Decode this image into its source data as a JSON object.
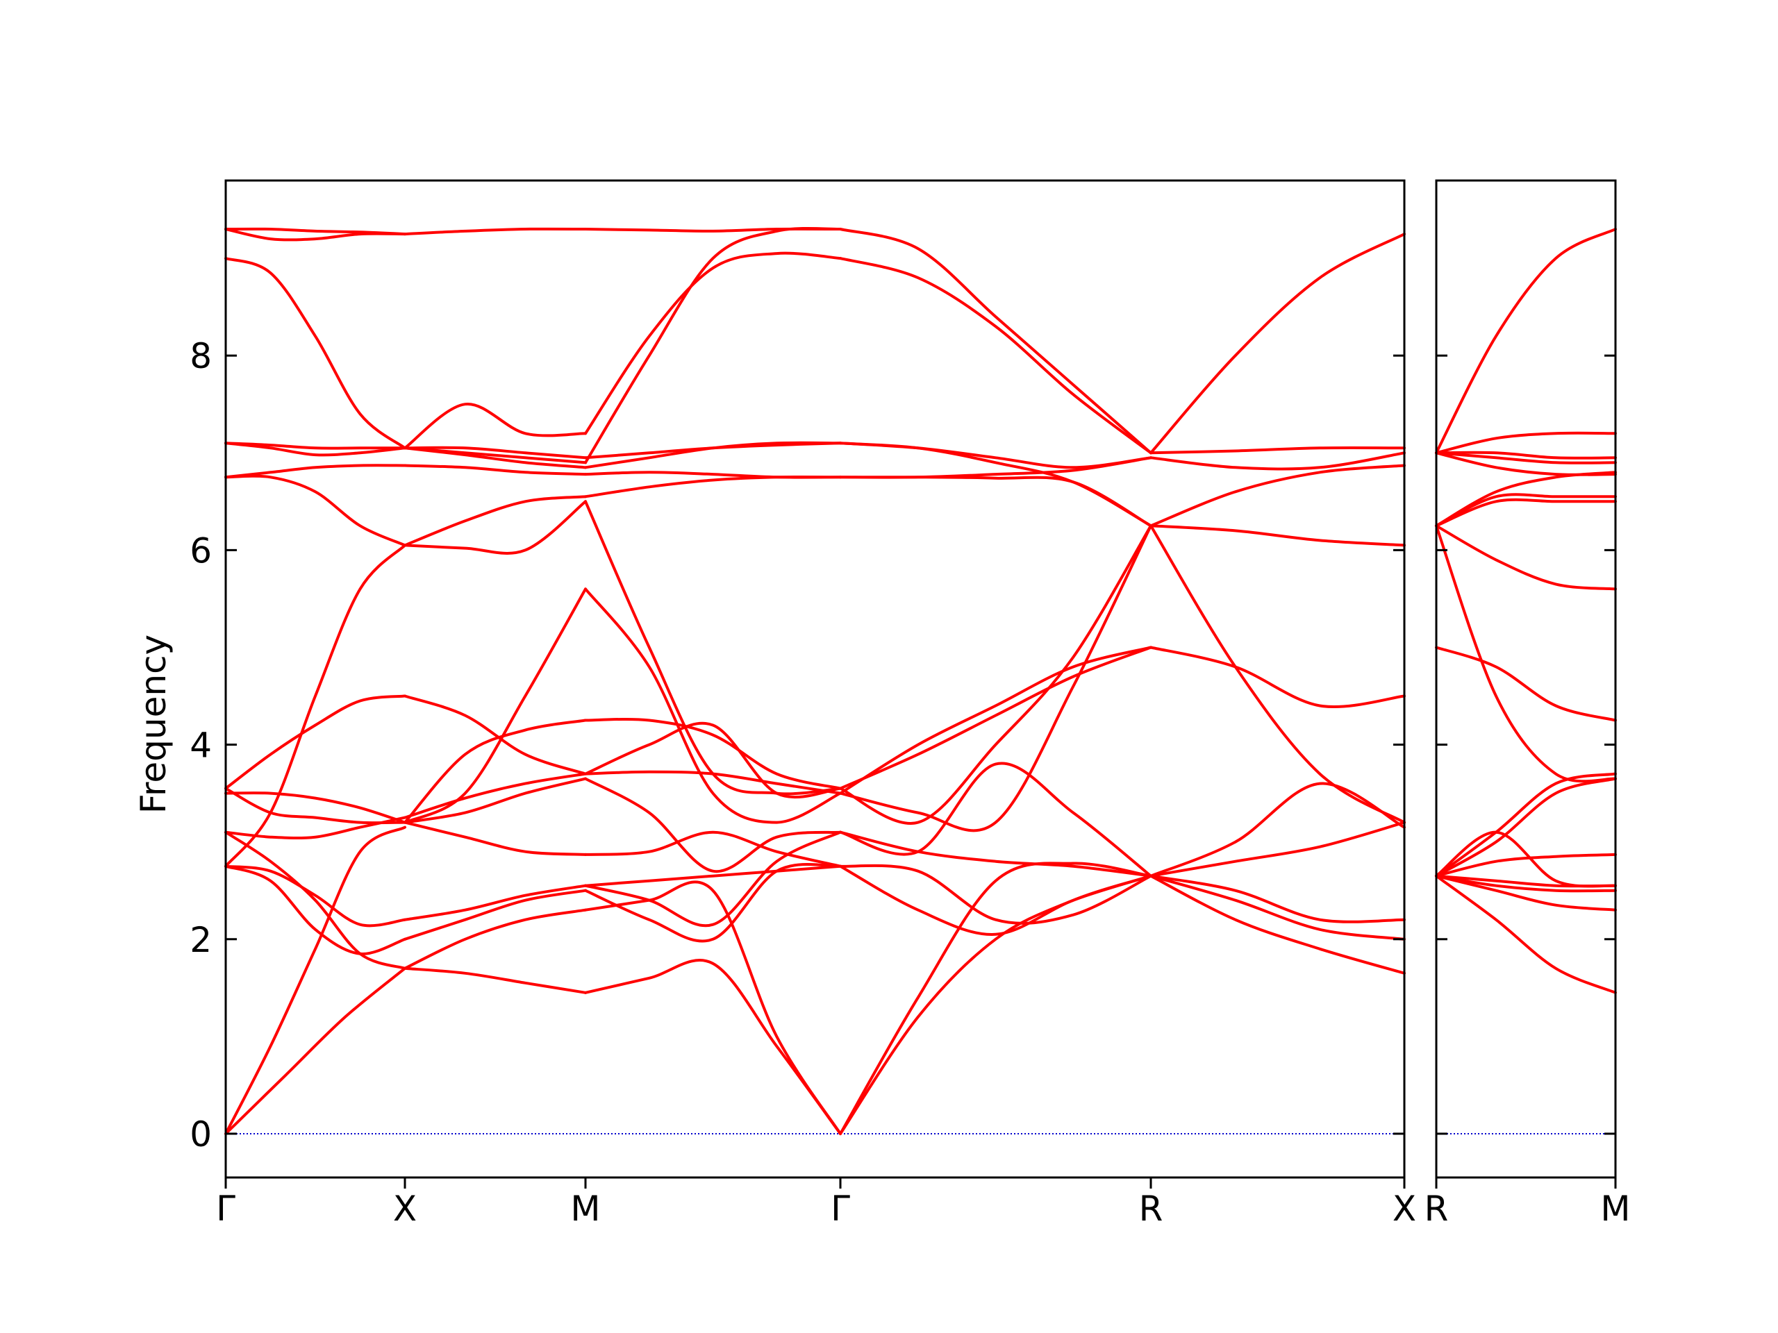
{
  "chart_data": {
    "type": "line",
    "ylabel": "Frequency",
    "ylim": [
      -0.45,
      9.8
    ],
    "yticks": [
      0,
      2,
      4,
      6,
      8
    ],
    "line_color": "#ff0000",
    "zero_line_color": "#0000cc",
    "panels": [
      {
        "xticks": [
          "Γ",
          "X",
          "M",
          "Γ",
          "R",
          "X"
        ],
        "segments": [
          {
            "from": "Γ",
            "to": "X",
            "bands": [
              [
                0,
                0.6,
                1.2,
                1.7
              ],
              [
                0,
                0.9,
                1.9,
                2.9,
                3.15
              ],
              [
                2.75,
                2.6,
                2.1,
                1.85,
                2.0
              ],
              [
                2.75,
                2.7,
                2.45,
                2.15,
                2.2
              ],
              [
                2.75,
                3.3,
                4.5,
                5.6,
                6.05
              ],
              [
                3.1,
                3.05,
                3.05,
                3.15,
                3.25
              ],
              [
                3.1,
                2.8,
                2.4,
                1.85,
                1.7
              ],
              [
                3.55,
                3.3,
                3.25,
                3.2,
                3.2
              ],
              [
                3.5,
                3.5,
                3.45,
                3.35,
                3.2
              ],
              [
                3.55,
                3.9,
                4.2,
                4.45,
                4.5
              ],
              [
                6.75,
                6.75,
                6.6,
                6.25,
                6.05
              ],
              [
                6.75,
                6.8,
                6.85,
                6.87,
                6.87
              ],
              [
                7.1,
                7.08,
                7.05,
                7.05,
                7.05
              ],
              [
                7.1,
                7.05,
                6.98,
                7.0,
                7.05
              ],
              [
                9.0,
                8.85,
                8.2,
                7.4,
                7.05
              ],
              [
                9.3,
                9.2,
                9.2,
                9.25,
                9.25
              ],
              [
                9.3,
                9.3,
                9.28,
                9.27,
                9.25
              ]
            ]
          },
          {
            "from": "X",
            "to": "M",
            "bands": [
              [
                1.7,
                1.65,
                1.55,
                1.45
              ],
              [
                1.7,
                2.0,
                2.2,
                2.3
              ],
              [
                2.0,
                2.2,
                2.4,
                2.5
              ],
              [
                2.2,
                2.3,
                2.45,
                2.55
              ],
              [
                3.2,
                3.3,
                3.5,
                3.65
              ],
              [
                3.2,
                3.05,
                2.9,
                2.87
              ],
              [
                3.25,
                3.45,
                3.6,
                3.7
              ],
              [
                3.2,
                3.9,
                4.15,
                4.25
              ],
              [
                3.2,
                3.5,
                4.5,
                5.6
              ],
              [
                4.5,
                4.3,
                3.9,
                3.7
              ],
              [
                6.05,
                6.02,
                6.0,
                6.5
              ],
              [
                6.05,
                6.3,
                6.5,
                6.55
              ],
              [
                6.87,
                6.85,
                6.8,
                6.78
              ],
              [
                7.05,
                6.98,
                6.9,
                6.85
              ],
              [
                7.05,
                7.0,
                6.95,
                6.9
              ],
              [
                7.05,
                7.05,
                7.0,
                6.95
              ],
              [
                7.05,
                7.5,
                7.2,
                7.2
              ],
              [
                9.25,
                9.28,
                9.3,
                9.3
              ]
            ]
          },
          {
            "from": "M",
            "to": "Γ",
            "bands": [
              [
                1.45,
                1.6,
                1.75,
                0.9,
                0
              ],
              [
                2.3,
                2.4,
                2.5,
                1.0,
                0
              ],
              [
                2.5,
                2.2,
                2.0,
                2.7,
                2.75
              ],
              [
                2.55,
                2.4,
                2.15,
                2.8,
                3.1
              ],
              [
                2.87,
                2.9,
                3.1,
                2.9,
                2.75
              ],
              [
                2.55,
                2.6,
                2.65,
                2.7,
                2.75
              ],
              [
                3.7,
                3.72,
                3.7,
                3.6,
                3.5
              ],
              [
                3.65,
                3.3,
                2.7,
                3.05,
                3.1
              ],
              [
                3.7,
                4.0,
                4.2,
                3.5,
                3.55
              ],
              [
                4.25,
                4.25,
                4.1,
                3.7,
                3.55
              ],
              [
                5.6,
                4.8,
                3.5,
                3.2,
                3.5
              ],
              [
                6.5,
                5.0,
                3.7,
                3.5,
                3.55
              ],
              [
                6.55,
                6.65,
                6.72,
                6.75,
                6.75
              ],
              [
                6.78,
                6.8,
                6.78,
                6.75,
                6.75
              ],
              [
                6.85,
                6.95,
                7.05,
                7.1,
                7.1
              ],
              [
                6.95,
                7.0,
                7.05,
                7.08,
                7.1
              ],
              [
                7.2,
                8.2,
                8.9,
                9.05,
                9.0
              ],
              [
                6.9,
                8.0,
                9.0,
                9.28,
                9.3
              ],
              [
                9.3,
                9.29,
                9.28,
                9.3,
                9.3
              ]
            ]
          },
          {
            "from": "Γ",
            "to": "R",
            "bands": [
              [
                0,
                1.2,
                2.0,
                2.4,
                2.65
              ],
              [
                0,
                1.4,
                2.6,
                2.78,
                2.65
              ],
              [
                2.75,
                2.7,
                2.2,
                2.25,
                2.65
              ],
              [
                2.75,
                2.3,
                2.05,
                2.4,
                2.65
              ],
              [
                3.1,
                2.9,
                2.8,
                2.75,
                2.65
              ],
              [
                3.1,
                2.9,
                3.8,
                3.3,
                2.65
              ],
              [
                3.5,
                3.3,
                3.2,
                4.6,
                6.25
              ],
              [
                3.55,
                3.2,
                4.0,
                4.9,
                6.25
              ],
              [
                3.5,
                4.0,
                4.4,
                4.8,
                5.0
              ],
              [
                3.55,
                3.9,
                4.3,
                4.7,
                5.0
              ],
              [
                6.75,
                6.75,
                6.78,
                6.82,
                6.95
              ],
              [
                6.75,
                6.75,
                6.74,
                6.7,
                6.25
              ],
              [
                7.1,
                7.05,
                6.95,
                6.85,
                6.95
              ],
              [
                7.1,
                7.05,
                6.9,
                6.7,
                6.25
              ],
              [
                9.0,
                8.8,
                8.3,
                7.6,
                7.0
              ],
              [
                9.3,
                9.1,
                8.4,
                7.7,
                7.0
              ]
            ]
          },
          {
            "from": "R",
            "to": "X",
            "bands": [
              [
                2.65,
                2.2,
                1.9,
                1.65
              ],
              [
                2.65,
                2.4,
                2.1,
                2.0
              ],
              [
                2.65,
                2.5,
                2.2,
                2.2
              ],
              [
                2.65,
                3.0,
                3.6,
                3.15
              ],
              [
                2.65,
                2.8,
                2.95,
                3.2
              ],
              [
                5.0,
                4.8,
                4.4,
                4.5
              ],
              [
                6.25,
                4.8,
                3.7,
                3.2
              ],
              [
                6.25,
                6.2,
                6.1,
                6.05
              ],
              [
                6.25,
                6.6,
                6.8,
                6.87
              ],
              [
                6.95,
                6.85,
                6.85,
                7.0
              ],
              [
                7.0,
                7.02,
                7.05,
                7.05
              ],
              [
                7.0,
                8.0,
                8.8,
                9.25
              ]
            ]
          }
        ]
      },
      {
        "xticks": [
          "R",
          "M"
        ],
        "segments": [
          {
            "from": "R",
            "to": "M",
            "bands": [
              [
                2.65,
                2.2,
                1.7,
                1.45
              ],
              [
                2.65,
                2.5,
                2.35,
                2.3
              ],
              [
                2.65,
                2.55,
                2.5,
                2.5
              ],
              [
                2.65,
                2.6,
                2.55,
                2.55
              ],
              [
                2.65,
                2.8,
                2.85,
                2.87
              ],
              [
                2.65,
                3.1,
                2.6,
                2.55
              ],
              [
                2.65,
                3.0,
                3.5,
                3.65
              ],
              [
                2.65,
                3.1,
                3.6,
                3.7
              ],
              [
                5.0,
                4.8,
                4.4,
                4.25
              ],
              [
                6.25,
                4.5,
                3.7,
                3.65
              ],
              [
                6.25,
                5.9,
                5.65,
                5.6
              ],
              [
                6.25,
                6.5,
                6.5,
                6.5
              ],
              [
                6.25,
                6.55,
                6.55,
                6.55
              ],
              [
                6.25,
                6.6,
                6.75,
                6.8
              ],
              [
                7.0,
                6.85,
                6.78,
                6.78
              ],
              [
                7.0,
                6.95,
                6.9,
                6.9
              ],
              [
                7.0,
                7.0,
                6.95,
                6.95
              ],
              [
                7.0,
                7.15,
                7.2,
                7.2
              ],
              [
                7.0,
                8.2,
                9.0,
                9.3
              ]
            ]
          }
        ]
      }
    ]
  }
}
